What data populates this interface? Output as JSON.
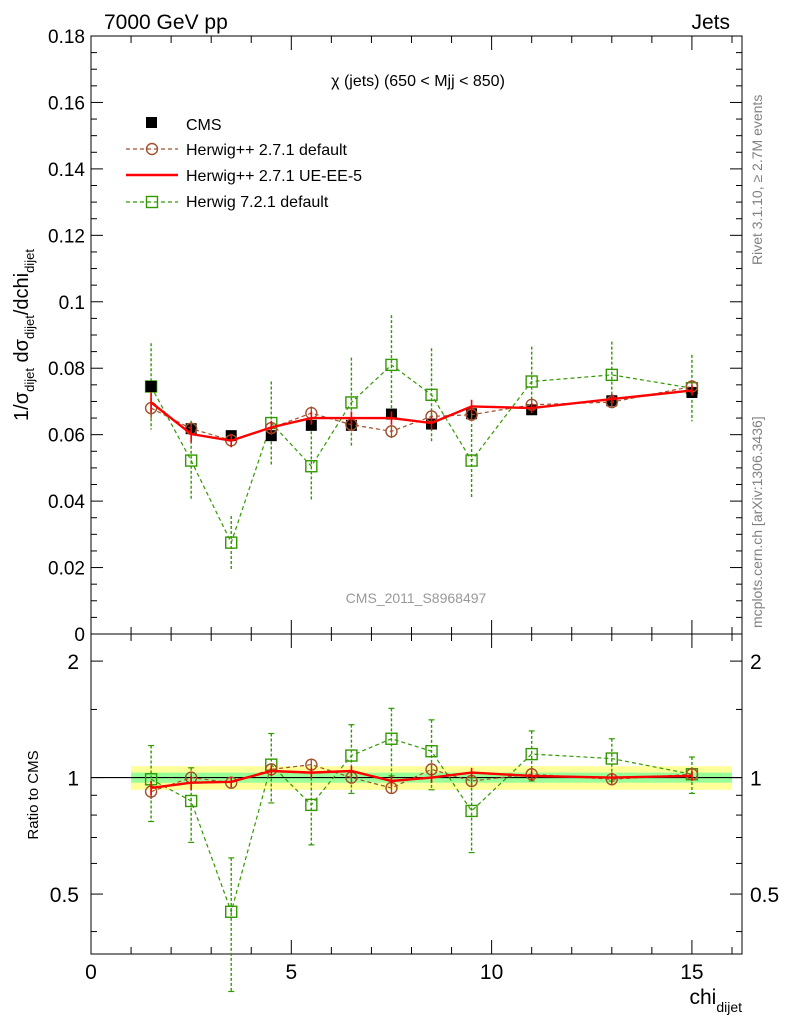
{
  "header": {
    "left": "7000 GeV pp",
    "right": "Jets"
  },
  "side_labels": {
    "rivet": "Rivet 3.1.10, ≥ 2.7M events",
    "mcplots": "mcplots.cern.ch [arXiv:1306.3436]"
  },
  "colors": {
    "data": "#000000",
    "herwig_pp_default": "#a0522d",
    "herwig_pp_ueee5": "#ff0000",
    "herwig_7_default": "#339900",
    "band_inner": "#99ff99",
    "band_outer": "#ffff99"
  },
  "chart_data": [
    {
      "type": "line",
      "title": "χ (jets) (650 < Mjj <  850)",
      "watermark": "CMS_2011_S8968497",
      "ylabel": {
        "prefix": "1/σ",
        "sub1": "dijet",
        "mid": " dσ",
        "sub2": "dijet",
        "suffix": "/dchi",
        "sub3": "dijet"
      },
      "xlim": [
        0,
        16.25
      ],
      "ylim": [
        0,
        0.18
      ],
      "yticks": [
        "0",
        "0.02",
        "0.04",
        "0.06",
        "0.08",
        "0.1",
        "0.12",
        "0.14",
        "0.16",
        "0.18"
      ],
      "ytick_values": [
        0,
        0.02,
        0.04,
        0.06,
        0.08,
        0.1,
        0.12,
        0.14,
        0.16,
        0.18
      ],
      "legend": {
        "position": "top-left",
        "entries": [
          "CMS",
          "Herwig++ 2.7.1 default",
          "Herwig++ 2.7.1 UE-EE-5",
          "Herwig 7.2.1 default"
        ]
      },
      "x": [
        1.5,
        2.5,
        3.5,
        4.5,
        5.5,
        6.5,
        7.5,
        8.5,
        9.5,
        11,
        13,
        15
      ],
      "series": [
        {
          "name": "CMS",
          "values": [
            0.0745,
            0.0618,
            0.0597,
            0.0597,
            0.0628,
            0.0628,
            0.0662,
            0.0632,
            0.0663,
            0.0675,
            0.0702,
            0.0727
          ],
          "errors": [
            0.0015,
            0.001,
            0.001,
            0.001,
            0.001,
            0.001,
            0.001,
            0.001,
            0.001,
            0.001,
            0.001,
            0.001
          ]
        },
        {
          "name": "Herwig++ 2.7.1 default",
          "values": [
            0.068,
            0.0618,
            0.0583,
            0.062,
            0.0665,
            0.063,
            0.061,
            0.0655,
            0.066,
            0.069,
            0.0698,
            0.0745
          ],
          "errors": [
            0.003,
            0.002,
            0.002,
            0.002,
            0.002,
            0.002,
            0.002,
            0.002,
            0.002,
            0.0015,
            0.0015,
            0.0015
          ]
        },
        {
          "name": "Herwig++ 2.7.1 UE-EE-5",
          "values": [
            0.0697,
            0.0602,
            0.0582,
            0.0622,
            0.065,
            0.065,
            0.065,
            0.0635,
            0.0685,
            0.068,
            0.0707,
            0.0733
          ],
          "errors": [
            0.003,
            0.0025,
            0.002,
            0.002,
            0.002,
            0.002,
            0.002,
            0.002,
            0.002,
            0.0015,
            0.0015,
            0.0015
          ]
        },
        {
          "name": "Herwig 7.2.1 default",
          "values": [
            0.0745,
            0.0522,
            0.0275,
            0.0635,
            0.0505,
            0.0697,
            0.081,
            0.072,
            0.0522,
            0.076,
            0.078,
            0.074
          ],
          "errors": [
            0.013,
            0.012,
            0.008,
            0.0125,
            0.0105,
            0.0135,
            0.015,
            0.014,
            0.011,
            0.0105,
            0.01,
            0.01
          ]
        }
      ]
    },
    {
      "type": "line",
      "ylabel": "Ratio to CMS",
      "xlabel": "chi",
      "xlabel_sub": "dijet",
      "xlim": [
        0,
        16.25
      ],
      "ylim": [
        0.35,
        2.35
      ],
      "ylog": true,
      "yticks": [
        "0.5",
        "1",
        "2"
      ],
      "ytick_values": [
        0.5,
        1,
        2
      ],
      "xticks": [
        "0",
        "5",
        "10",
        "15"
      ],
      "xtick_values": [
        0,
        5,
        10,
        15
      ],
      "x": [
        1.5,
        2.5,
        3.5,
        4.5,
        5.5,
        6.5,
        7.5,
        8.5,
        9.5,
        11,
        13,
        15
      ],
      "band": {
        "x_edges": [
          1,
          2,
          3,
          4,
          5,
          6,
          7,
          8,
          9,
          10,
          12,
          14,
          16
        ],
        "inner": [
          0.03,
          0.03,
          0.03,
          0.03,
          0.03,
          0.03,
          0.03,
          0.03,
          0.03,
          0.03,
          0.03,
          0.03
        ],
        "outer": [
          0.07,
          0.07,
          0.07,
          0.07,
          0.07,
          0.07,
          0.07,
          0.07,
          0.07,
          0.07,
          0.07,
          0.07
        ]
      },
      "series": [
        {
          "name": "Herwig++ 2.7.1 default",
          "values": [
            0.92,
            1.0,
            0.97,
            1.05,
            1.08,
            1.0,
            0.94,
            1.05,
            0.98,
            1.02,
            0.99,
            1.02
          ],
          "errors": [
            0.04,
            0.03,
            0.03,
            0.03,
            0.03,
            0.03,
            0.03,
            0.03,
            0.03,
            0.03,
            0.03,
            0.03
          ]
        },
        {
          "name": "Herwig++ 2.7.1 UE-EE-5",
          "values": [
            0.94,
            0.97,
            0.975,
            1.04,
            1.03,
            1.04,
            0.98,
            1.0,
            1.03,
            1.01,
            1.0,
            1.01
          ],
          "errors": [
            0.04,
            0.04,
            0.03,
            0.03,
            0.03,
            0.03,
            0.03,
            0.03,
            0.03,
            0.03,
            0.03,
            0.03
          ]
        },
        {
          "name": "Herwig 7.2.1 default",
          "values": [
            0.99,
            0.87,
            0.45,
            1.08,
            0.85,
            1.14,
            1.26,
            1.17,
            0.82,
            1.15,
            1.12,
            1.02
          ],
          "errors": [
            0.22,
            0.19,
            0.17,
            0.22,
            0.18,
            0.23,
            0.25,
            0.24,
            0.18,
            0.17,
            0.14,
            0.11
          ]
        }
      ]
    }
  ]
}
